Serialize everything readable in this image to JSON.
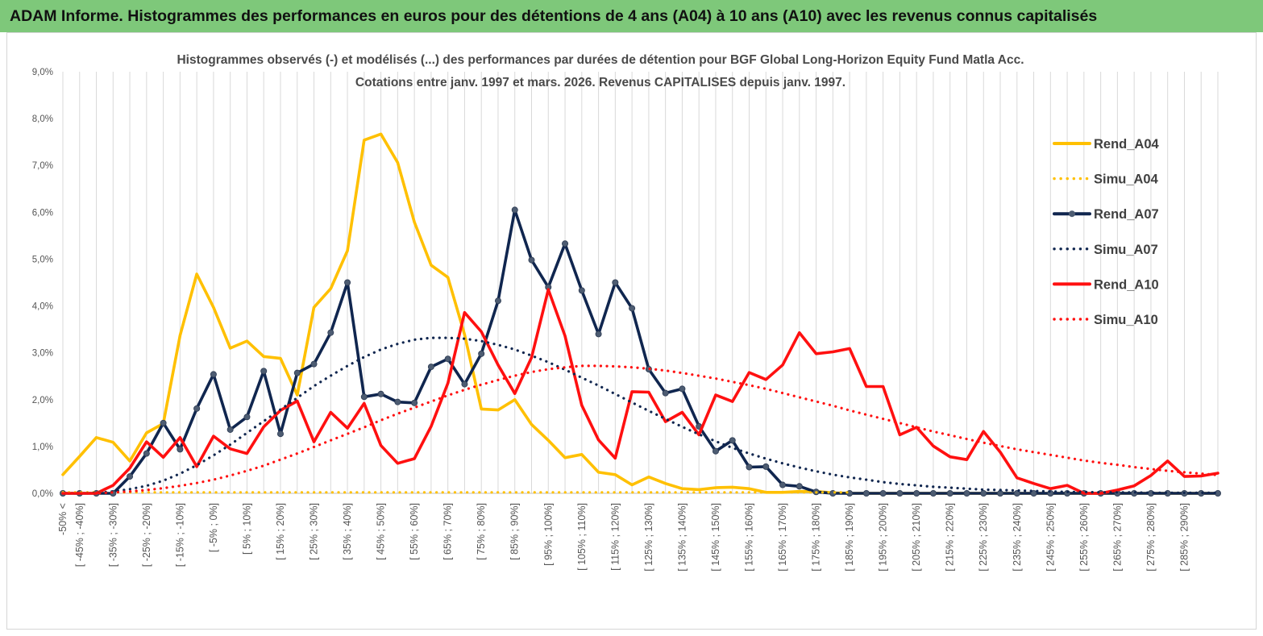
{
  "header": {
    "banner": "ADAM Informe. Histogrammes des performances en euros pour des détentions de 4 ans (A04) à 10 ans (A10) avec les revenus connus capitalisés"
  },
  "colors": {
    "banner_bg": "#7ec87a",
    "A04": "#ffc000",
    "A07": "#10264f",
    "A07_marker": "#4d5c72",
    "A10": "#ff1010",
    "grid": "#d9d9d9",
    "axis_text": "#555555"
  },
  "chart_data": {
    "type": "line",
    "title": "Histogrammes observés (-) et modélisés (...) des performances par durées de détention pour BGF Global Long-Horizon Equity Fund Matla Acc.",
    "subtitle": "Cotations entre janv. 1997 et mars. 2026. Revenus CAPITALISES depuis janv. 1997.",
    "xlabel": "",
    "ylabel": "",
    "ylim": [
      0,
      9
    ],
    "y_ticks": [
      "0,0%",
      "1,0%",
      "2,0%",
      "3,0%",
      "4,0%",
      "5,0%",
      "6,0%",
      "7,0%",
      "8,0%",
      "9,0%"
    ],
    "grid": "vertical",
    "legend_position": "right",
    "x_tick_labels": [
      "-50% <",
      "[ -45% ; -40%]",
      "[ -35% ; -30%]",
      "[ -25% ; -20%]",
      "[ -15% ; -10%]",
      "[ -5% ; 0%]",
      "[ 5% ; 10%]",
      "[ 15% ; 20%]",
      "[ 25% ; 30%]",
      "[ 35% ; 40%]",
      "[ 45% ; 50%]",
      "[ 55% ; 60%]",
      "[ 65% ; 70%]",
      "[ 75% ; 80%]",
      "[ 85% ; 90%]",
      "[ 95% ; 100%]",
      "[ 105% ; 110%]",
      "[ 115% ; 120%]",
      "[ 125% ; 130%]",
      "[ 135% ; 140%]",
      "[ 145% ; 150%]",
      "[ 155% ; 160%]",
      "[ 165% ; 170%]",
      "[ 175% ; 180%]",
      "[ 185% ; 190%]",
      "[ 195% ; 200%]",
      "[ 205% ; 210%]",
      "[ 215% ; 220%]",
      "[ 225% ; 230%]",
      "[ 235% ; 240%]",
      "[ 245% ; 250%]",
      "[ 255% ; 260%]",
      "[ 265% ; 270%]",
      "[ 275% ; 280%]",
      "[ 285% ; 290%]"
    ],
    "series": [
      {
        "name": "Rend_A04",
        "style": "solid",
        "color": "#ffc000",
        "values": [
          0.4,
          0.79,
          1.19,
          1.09,
          0.69,
          1.29,
          1.49,
          3.37,
          4.68,
          3.97,
          3.1,
          3.25,
          2.92,
          2.88,
          2.1,
          3.97,
          4.37,
          5.18,
          7.54,
          7.67,
          7.06,
          5.79,
          4.87,
          4.61,
          3.39,
          1.8,
          1.78,
          2.0,
          1.47,
          1.13,
          0.76,
          0.83,
          0.45,
          0.4,
          0.18,
          0.35,
          0.21,
          0.1,
          0.08,
          0.12,
          0.13,
          0.1,
          0.02,
          0.02,
          0.04,
          0.04,
          0.01,
          0,
          0,
          0,
          0,
          0,
          0,
          0,
          0,
          0,
          0,
          0,
          0,
          0,
          0,
          0,
          0,
          0,
          0,
          0,
          0,
          0,
          0,
          0
        ]
      },
      {
        "name": "Simu_A04",
        "style": "dotted",
        "color": "#ffc000",
        "values": [
          0.02,
          0.02,
          0.02,
          0.02,
          0.02,
          0.02,
          0.02,
          0.02,
          0.02,
          0.02,
          0.02,
          0.02,
          0.02,
          0.02,
          0.02,
          0.02,
          0.02,
          0.02,
          0.02,
          0.02,
          0.02,
          0.02,
          0.02,
          0.02,
          0.02,
          0.02,
          0.02,
          0.02,
          0.02,
          0.02,
          0.02,
          0.02,
          0.02,
          0.02,
          0.02,
          0.02,
          0.02,
          0.02,
          0.02,
          0.02,
          0.02,
          0.02,
          0.02,
          0.02,
          0.02,
          0.02,
          0.02,
          0.02
        ]
      },
      {
        "name": "Rend_A07",
        "style": "solid",
        "color": "#10264f",
        "values": [
          0,
          0,
          0,
          0,
          0.36,
          0.85,
          1.5,
          0.94,
          1.81,
          2.54,
          1.36,
          1.63,
          2.61,
          1.27,
          2.57,
          2.76,
          3.43,
          4.5,
          2.06,
          2.12,
          1.95,
          1.93,
          2.7,
          2.87,
          2.33,
          2.98,
          4.11,
          6.05,
          4.98,
          4.4,
          5.33,
          4.33,
          3.4,
          4.5,
          3.95,
          2.65,
          2.14,
          2.23,
          1.43,
          0.9,
          1.13,
          0.56,
          0.57,
          0.18,
          0.15,
          0.03,
          0,
          0,
          0,
          0,
          0,
          0,
          0,
          0,
          0,
          0,
          0,
          0,
          0,
          0,
          0,
          0,
          0,
          0,
          0,
          0,
          0,
          0,
          0,
          0
        ]
      },
      {
        "name": "Simu_A07",
        "style": "dotted",
        "color": "#10264f",
        "values": [
          0,
          0,
          0.01,
          0.04,
          0.09,
          0.16,
          0.27,
          0.42,
          0.6,
          0.81,
          1.04,
          1.29,
          1.54,
          1.79,
          2.04,
          2.29,
          2.51,
          2.72,
          2.91,
          3.07,
          3.19,
          3.28,
          3.32,
          3.32,
          3.3,
          3.25,
          3.17,
          3.07,
          2.94,
          2.8,
          2.64,
          2.47,
          2.3,
          2.12,
          1.94,
          1.76,
          1.59,
          1.42,
          1.26,
          1.11,
          0.97,
          0.85,
          0.74,
          0.64,
          0.55,
          0.47,
          0.4,
          0.34,
          0.29,
          0.24,
          0.2,
          0.17,
          0.14,
          0.12,
          0.1,
          0.08,
          0.07,
          0.06,
          0.05,
          0.04,
          0.03,
          0.03,
          0.02,
          0.02,
          0.02,
          0.01,
          0.01,
          0.01,
          0.01,
          0.01
        ]
      },
      {
        "name": "Rend_A10",
        "style": "solid",
        "color": "#ff1010",
        "values": [
          0,
          0,
          0,
          0.17,
          0.54,
          1.1,
          0.77,
          1.19,
          0.57,
          1.22,
          0.95,
          0.85,
          1.42,
          1.77,
          1.97,
          1.1,
          1.73,
          1.39,
          1.92,
          1.02,
          0.64,
          0.74,
          1.43,
          2.35,
          3.86,
          3.45,
          2.74,
          2.13,
          2.9,
          4.35,
          3.36,
          1.88,
          1.14,
          0.75,
          2.17,
          2.16,
          1.53,
          1.73,
          1.25,
          2.1,
          1.96,
          2.58,
          2.43,
          2.74,
          3.43,
          2.98,
          3.02,
          3.09,
          2.28,
          2.28,
          1.25,
          1.41,
          1.01,
          0.78,
          0.72,
          1.32,
          0.88,
          0.33,
          0.21,
          0.1,
          0.17,
          0,
          0,
          0.07,
          0.16,
          0.38,
          0.69,
          0.36,
          0.37,
          0.43
        ]
      },
      {
        "name": "Simu_A10",
        "style": "dotted",
        "color": "#ff1010",
        "values": [
          0,
          0,
          0,
          0.02,
          0.04,
          0.07,
          0.11,
          0.16,
          0.22,
          0.29,
          0.38,
          0.48,
          0.59,
          0.72,
          0.85,
          0.99,
          1.13,
          1.27,
          1.41,
          1.56,
          1.7,
          1.83,
          1.96,
          2.09,
          2.21,
          2.32,
          2.42,
          2.51,
          2.59,
          2.65,
          2.69,
          2.72,
          2.72,
          2.71,
          2.69,
          2.66,
          2.62,
          2.57,
          2.51,
          2.45,
          2.38,
          2.31,
          2.23,
          2.14,
          2.05,
          1.96,
          1.87,
          1.77,
          1.68,
          1.59,
          1.5,
          1.41,
          1.32,
          1.24,
          1.16,
          1.08,
          1.01,
          0.94,
          0.88,
          0.82,
          0.76,
          0.7,
          0.65,
          0.61,
          0.56,
          0.52,
          0.48,
          0.45,
          0.42,
          0.39
        ]
      }
    ]
  }
}
